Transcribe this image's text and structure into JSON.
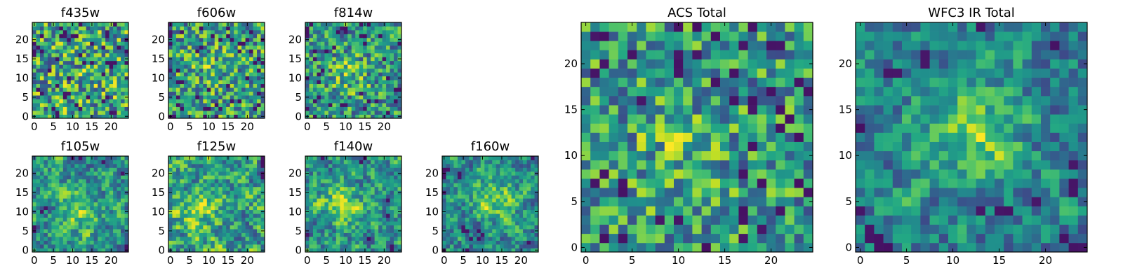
{
  "figure": {
    "background": "#ffffff",
    "colormap": "viridis"
  },
  "chart_data": [
    {
      "type": "heatmap",
      "title": "f435w",
      "grid": [
        25,
        25
      ],
      "xlim": [
        -0.5,
        24.5
      ],
      "ylim": [
        -0.5,
        24.5
      ],
      "xticks": [
        "0",
        "5",
        "10",
        "15",
        "20"
      ],
      "yticks": [
        "0",
        "5",
        "10",
        "15",
        "20"
      ],
      "pattern": "noise",
      "peak_center": [
        12,
        10
      ],
      "peak_strength": 0.05,
      "seed": 11
    },
    {
      "type": "heatmap",
      "title": "f606w",
      "grid": [
        25,
        25
      ],
      "xlim": [
        -0.5,
        24.5
      ],
      "ylim": [
        -0.5,
        24.5
      ],
      "xticks": [
        "0",
        "5",
        "10",
        "15",
        "20"
      ],
      "yticks": [
        "0",
        "5",
        "10",
        "15",
        "20"
      ],
      "pattern": "noise",
      "peak_center": [
        11,
        13
      ],
      "peak_strength": 0.15,
      "seed": 23
    },
    {
      "type": "heatmap",
      "title": "f814w",
      "grid": [
        25,
        25
      ],
      "xlim": [
        -0.5,
        24.5
      ],
      "ylim": [
        -0.5,
        24.5
      ],
      "xticks": [
        "0",
        "5",
        "10",
        "15",
        "20"
      ],
      "yticks": [
        "0",
        "5",
        "10",
        "15",
        "20"
      ],
      "pattern": "noise",
      "peak_center": [
        11,
        11
      ],
      "peak_strength": 0.3,
      "seed": 37
    },
    {
      "type": "heatmap",
      "title": "f105w",
      "grid": [
        25,
        25
      ],
      "xlim": [
        -0.5,
        24.5
      ],
      "ylim": [
        -0.5,
        24.5
      ],
      "xticks": [
        "0",
        "5",
        "10",
        "15",
        "20"
      ],
      "yticks": [
        "0",
        "5",
        "10",
        "15",
        "20"
      ],
      "pattern": "smooth",
      "peak_center": [
        12,
        10
      ],
      "peak_strength": 0.3,
      "seed": 41
    },
    {
      "type": "heatmap",
      "title": "f125w",
      "grid": [
        25,
        25
      ],
      "xlim": [
        -0.5,
        24.5
      ],
      "ylim": [
        -0.5,
        24.5
      ],
      "xticks": [
        "0",
        "5",
        "10",
        "15",
        "20"
      ],
      "yticks": [
        "0",
        "5",
        "10",
        "15",
        "20"
      ],
      "pattern": "smooth",
      "peak_center": [
        6,
        10
      ],
      "peak_strength": 0.25,
      "seed": 53
    },
    {
      "type": "heatmap",
      "title": "f140w",
      "grid": [
        25,
        25
      ],
      "xlim": [
        -0.5,
        24.5
      ],
      "ylim": [
        -0.5,
        24.5
      ],
      "xticks": [
        "0",
        "5",
        "10",
        "15",
        "20"
      ],
      "yticks": [
        "0",
        "5",
        "10",
        "15",
        "20"
      ],
      "pattern": "smooth",
      "peak_center": [
        9,
        12
      ],
      "peak_strength": 0.3,
      "seed": 67
    },
    {
      "type": "heatmap",
      "title": "f160w",
      "grid": [
        25,
        25
      ],
      "xlim": [
        -0.5,
        24.5
      ],
      "ylim": [
        -0.5,
        24.5
      ],
      "xticks": [
        "0",
        "5",
        "10",
        "15",
        "20"
      ],
      "yticks": [
        "0",
        "5",
        "10",
        "15",
        "20"
      ],
      "pattern": "smooth",
      "peak_center": [
        13,
        13
      ],
      "peak_strength": 0.4,
      "seed": 79
    },
    {
      "type": "heatmap",
      "title": "ACS Total",
      "grid": [
        25,
        25
      ],
      "xlim": [
        -0.5,
        24.5
      ],
      "ylim": [
        -0.5,
        24.5
      ],
      "xticks": [
        "0",
        "5",
        "10",
        "15",
        "20"
      ],
      "yticks": [
        "0",
        "5",
        "10",
        "15",
        "20"
      ],
      "pattern": "noise",
      "peak_center": [
        10,
        11
      ],
      "peak_strength": 0.25,
      "seed": 97
    },
    {
      "type": "heatmap",
      "title": "WFC3 IR Total",
      "grid": [
        25,
        25
      ],
      "xlim": [
        -0.5,
        24.5
      ],
      "ylim": [
        -0.5,
        24.5
      ],
      "xticks": [
        "0",
        "5",
        "10",
        "15",
        "20"
      ],
      "yticks": [
        "0",
        "5",
        "10",
        "15",
        "20"
      ],
      "pattern": "smooth",
      "peak_center": [
        12,
        12
      ],
      "peak_strength": 0.45,
      "seed": 131
    }
  ]
}
